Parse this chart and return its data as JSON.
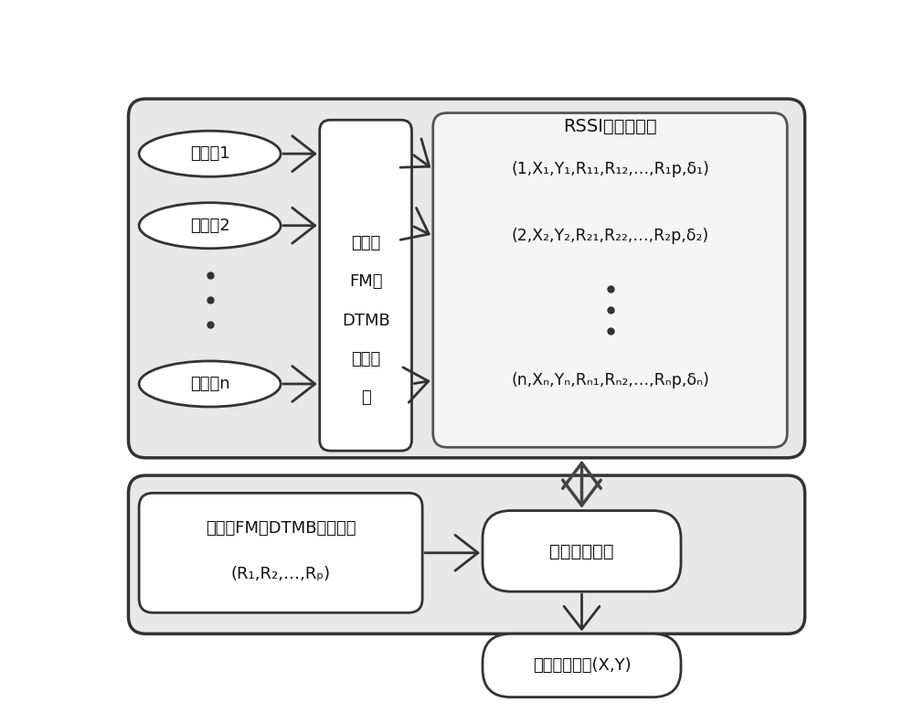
{
  "bg_color": "#ffffff",
  "outer_box_fill": "#e8e8e8",
  "outer_box_edge": "#333333",
  "inner_box_fill": "#f2f2f2",
  "white_fill": "#ffffff",
  "text_color": "#111111",
  "arrow_color": "#444444",
  "ref_label1": "参考点1",
  "ref_label2": "参考点2",
  "ref_labeln": "参考点n",
  "sampler_line1": "多频率",
  "sampler_line2": "FM与",
  "sampler_line3": "DTMB",
  "sampler_line4": "信号采",
  "sampler_line5": "样",
  "db_title": "RSSI指纹数据库",
  "db_row1": "(1,X₁,Y₁,R₁₁,R₁₂,…,R₁p,δ₁)",
  "db_row2": "(2,X₂,Y₂,R₂₁,R₂₂,…,R₂p,δ₂)",
  "db_rown": "(n,Xₙ,Yₙ,Rₙ₁,Rₙ₂,…,Rₙp,δₙ)",
  "test_line1": "待测点FM与DTMB信号强度",
  "test_line2": "(R₁,R₂,…,Rₚ)",
  "algo_text": "联合定位算法",
  "output_text": "输出定位结果(X,Y)"
}
